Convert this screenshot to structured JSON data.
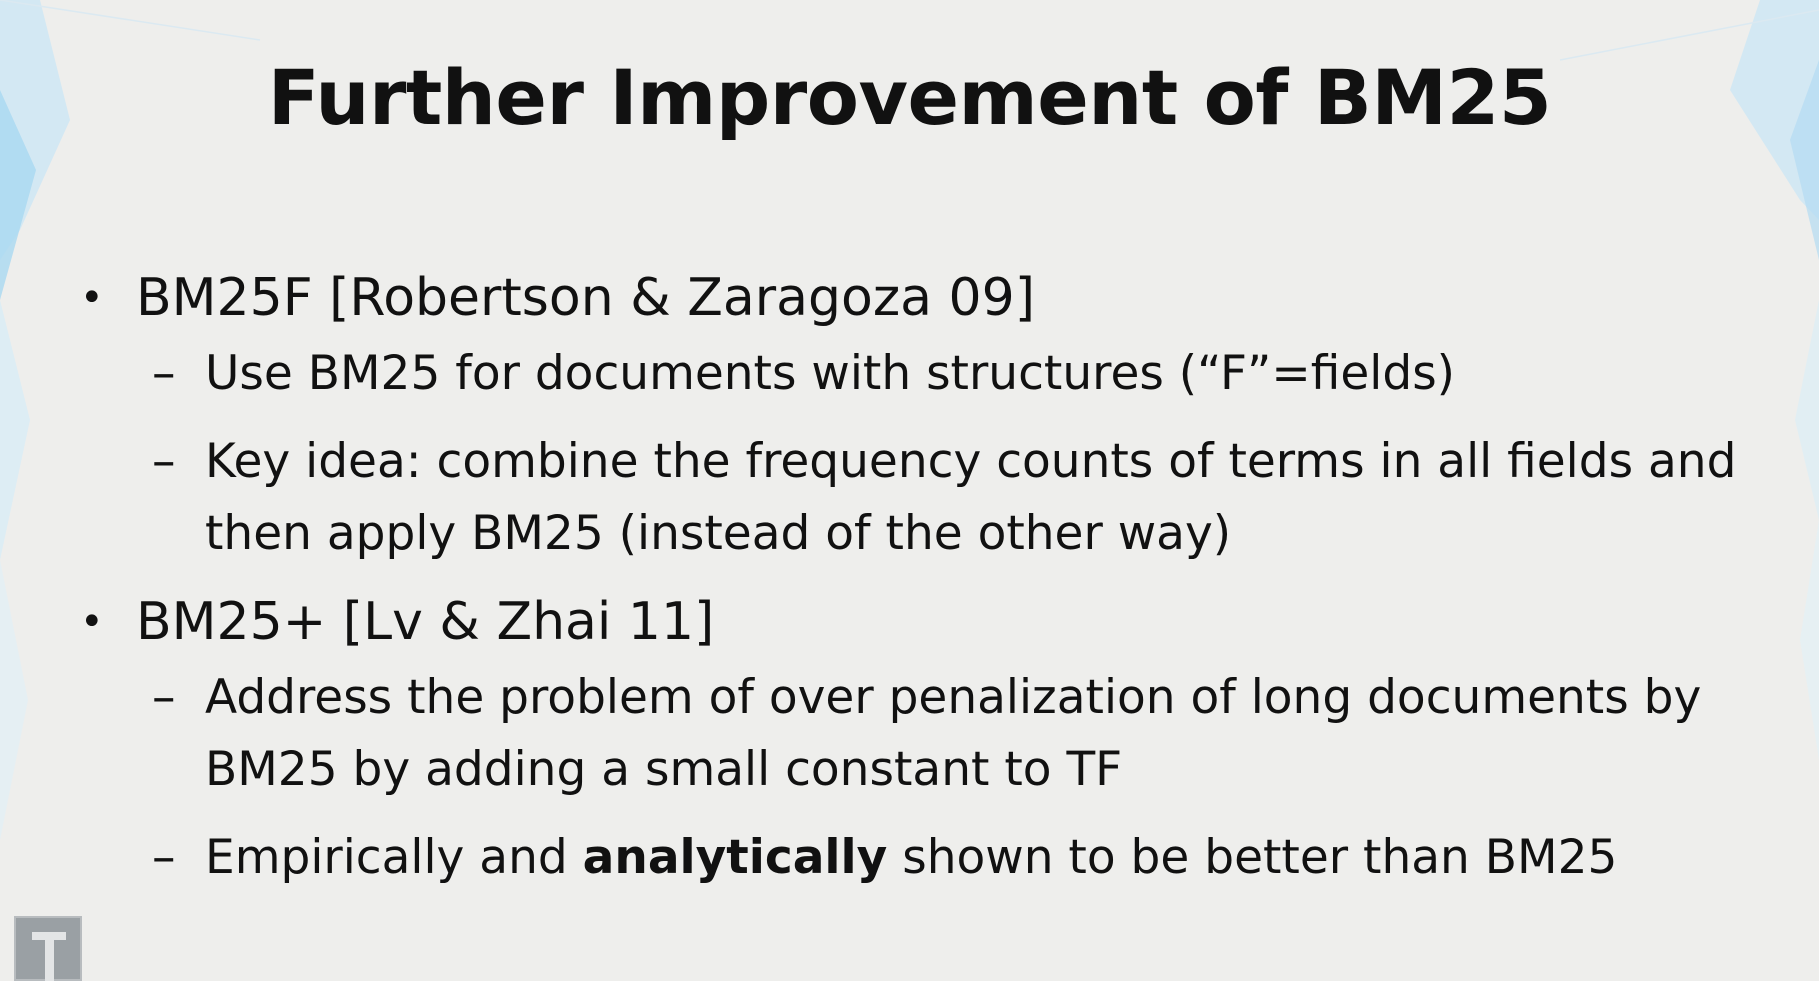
{
  "slide": {
    "title": "Further Improvement of BM25",
    "bullets": [
      {
        "text": "BM25F [Robertson & Zaragoza 09]",
        "subs": [
          {
            "text": "Use BM25 for documents with structures (“F”=fields)"
          },
          {
            "text": "Key idea: combine the frequency counts of terms in all fields and then apply BM25 (instead of the other way)"
          }
        ]
      },
      {
        "text": "BM25+ [Lv & Zhai 11]",
        "subs": [
          {
            "text": "Address the problem of over penalization of long documents by BM25 by adding a small constant to TF"
          },
          {
            "pre": "Empirically and ",
            "bold": "analytically",
            "post": " shown to be better than BM25"
          }
        ]
      }
    ],
    "bullet_glyph": "•",
    "dash_glyph": "–"
  },
  "colors": {
    "background": "#eeeeec",
    "text": "#111111",
    "decor_accent": "#bfe2f4"
  },
  "logo": {
    "icon": "thumbnail-logo-icon"
  }
}
